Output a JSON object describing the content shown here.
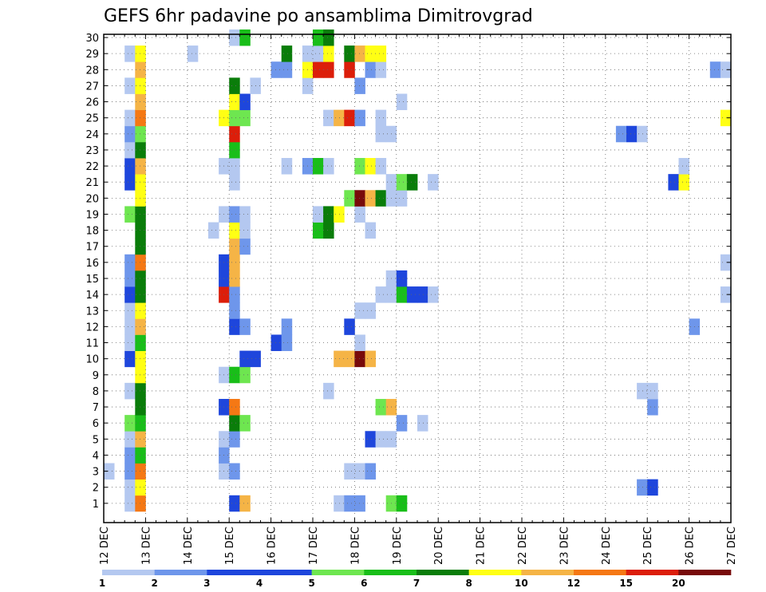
{
  "chart_data": {
    "type": "heatmap",
    "title": "GEFS 6hr padavine po ansamblima Dimitrovgrad",
    "x_tick_labels": [
      "12 DEC",
      "13 DEC",
      "14 DEC",
      "15 DEC",
      "16 DEC",
      "17 DEC",
      "18 DEC",
      "19 DEC",
      "20 DEC",
      "21 DEC",
      "22 DEC",
      "23 DEC",
      "24 DEC",
      "25 DEC",
      "26 DEC",
      "27 DEC"
    ],
    "y_tick_labels": [
      "1",
      "2",
      "3",
      "4",
      "5",
      "6",
      "7",
      "8",
      "9",
      "10",
      "11",
      "12",
      "13",
      "14",
      "15",
      "16",
      "17",
      "18",
      "19",
      "20",
      "21",
      "22",
      "23",
      "24",
      "25",
      "26",
      "27",
      "28",
      "29",
      "30"
    ],
    "x_range_steps": [
      0,
      60
    ],
    "y_range": [
      0,
      30
    ],
    "grid": true,
    "legend": {
      "position": "bottom",
      "labels": [
        "1",
        "2",
        "3",
        "4",
        "5",
        "6",
        "7",
        "8",
        "10",
        "12",
        "15",
        "20"
      ],
      "colors": [
        "#b4c8f0",
        "#6e96eb",
        "#1e46dc",
        "#1e46dc",
        "#6ee650",
        "#19be19",
        "#0a7d0a",
        "#ffff14",
        "#f5b446",
        "#f57814",
        "#dc1e0a",
        "#780a0a"
      ]
    },
    "note_cells": "Each cell: [x_step (6-hour step from 12 DEC 00h), member (1-30), legend class index 0-11]",
    "cells": [
      [
        2,
        1,
        0
      ],
      [
        3,
        1,
        9
      ],
      [
        12,
        1,
        2
      ],
      [
        13,
        1,
        8
      ],
      [
        22,
        1,
        0
      ],
      [
        23,
        1,
        1
      ],
      [
        24,
        1,
        1
      ],
      [
        27,
        1,
        4
      ],
      [
        28,
        1,
        5
      ],
      [
        2,
        2,
        0
      ],
      [
        3,
        2,
        7
      ],
      [
        51,
        2,
        1
      ],
      [
        52,
        2,
        2
      ],
      [
        0,
        3,
        0
      ],
      [
        2,
        3,
        1
      ],
      [
        3,
        3,
        9
      ],
      [
        11,
        3,
        0
      ],
      [
        12,
        3,
        1
      ],
      [
        23,
        3,
        0
      ],
      [
        24,
        3,
        0
      ],
      [
        25,
        3,
        1
      ],
      [
        2,
        4,
        1
      ],
      [
        3,
        4,
        5
      ],
      [
        11,
        4,
        1
      ],
      [
        2,
        5,
        0
      ],
      [
        3,
        5,
        8
      ],
      [
        11,
        5,
        0
      ],
      [
        12,
        5,
        1
      ],
      [
        25,
        5,
        2
      ],
      [
        26,
        5,
        0
      ],
      [
        27,
        5,
        0
      ],
      [
        2,
        6,
        4
      ],
      [
        3,
        6,
        5
      ],
      [
        12,
        6,
        6
      ],
      [
        13,
        6,
        4
      ],
      [
        28,
        6,
        1
      ],
      [
        30,
        6,
        0
      ],
      [
        3,
        7,
        6
      ],
      [
        11,
        7,
        2
      ],
      [
        12,
        7,
        9
      ],
      [
        26,
        7,
        4
      ],
      [
        27,
        7,
        8
      ],
      [
        52,
        7,
        1
      ],
      [
        2,
        8,
        0
      ],
      [
        3,
        8,
        6
      ],
      [
        21,
        8,
        0
      ],
      [
        51,
        8,
        0
      ],
      [
        52,
        8,
        0
      ],
      [
        3,
        9,
        7
      ],
      [
        11,
        9,
        0
      ],
      [
        12,
        9,
        5
      ],
      [
        13,
        9,
        4
      ],
      [
        2,
        10,
        2
      ],
      [
        3,
        10,
        7
      ],
      [
        13,
        10,
        2
      ],
      [
        14,
        10,
        2
      ],
      [
        22,
        10,
        8
      ],
      [
        23,
        10,
        8
      ],
      [
        24,
        10,
        11
      ],
      [
        25,
        10,
        8
      ],
      [
        2,
        11,
        0
      ],
      [
        3,
        11,
        5
      ],
      [
        16,
        11,
        2
      ],
      [
        17,
        11,
        1
      ],
      [
        24,
        11,
        0
      ],
      [
        2,
        12,
        0
      ],
      [
        3,
        12,
        8
      ],
      [
        12,
        12,
        2
      ],
      [
        13,
        12,
        1
      ],
      [
        17,
        12,
        1
      ],
      [
        23,
        12,
        2
      ],
      [
        56,
        12,
        1
      ],
      [
        2,
        13,
        0
      ],
      [
        3,
        13,
        7
      ],
      [
        12,
        13,
        1
      ],
      [
        24,
        13,
        0
      ],
      [
        25,
        13,
        0
      ],
      [
        2,
        14,
        2
      ],
      [
        3,
        14,
        6
      ],
      [
        11,
        14,
        10
      ],
      [
        12,
        14,
        1
      ],
      [
        26,
        14,
        0
      ],
      [
        27,
        14,
        0
      ],
      [
        28,
        14,
        5
      ],
      [
        29,
        14,
        2
      ],
      [
        30,
        14,
        2
      ],
      [
        31,
        14,
        0
      ],
      [
        59,
        14,
        0
      ],
      [
        2,
        15,
        1
      ],
      [
        3,
        15,
        6
      ],
      [
        11,
        15,
        2
      ],
      [
        12,
        15,
        8
      ],
      [
        27,
        15,
        0
      ],
      [
        28,
        15,
        2
      ],
      [
        2,
        16,
        1
      ],
      [
        3,
        16,
        9
      ],
      [
        11,
        16,
        2
      ],
      [
        12,
        16,
        8
      ],
      [
        59,
        16,
        0
      ],
      [
        3,
        17,
        6
      ],
      [
        12,
        17,
        8
      ],
      [
        13,
        17,
        1
      ],
      [
        3,
        18,
        6
      ],
      [
        10,
        18,
        0
      ],
      [
        12,
        18,
        7
      ],
      [
        13,
        18,
        0
      ],
      [
        20,
        18,
        5
      ],
      [
        21,
        18,
        6
      ],
      [
        25,
        18,
        0
      ],
      [
        2,
        19,
        4
      ],
      [
        3,
        19,
        6
      ],
      [
        11,
        19,
        0
      ],
      [
        12,
        19,
        1
      ],
      [
        13,
        19,
        0
      ],
      [
        20,
        19,
        0
      ],
      [
        21,
        19,
        6
      ],
      [
        22,
        19,
        7
      ],
      [
        24,
        19,
        0
      ],
      [
        3,
        20,
        7
      ],
      [
        23,
        20,
        4
      ],
      [
        24,
        20,
        11
      ],
      [
        25,
        20,
        8
      ],
      [
        26,
        20,
        6
      ],
      [
        27,
        20,
        0
      ],
      [
        28,
        20,
        0
      ],
      [
        2,
        21,
        2
      ],
      [
        3,
        21,
        7
      ],
      [
        12,
        21,
        0
      ],
      [
        27,
        21,
        0
      ],
      [
        28,
        21,
        4
      ],
      [
        29,
        21,
        6
      ],
      [
        31,
        21,
        0
      ],
      [
        54,
        21,
        2
      ],
      [
        55,
        21,
        7
      ],
      [
        2,
        22,
        2
      ],
      [
        3,
        22,
        8
      ],
      [
        11,
        22,
        0
      ],
      [
        12,
        22,
        0
      ],
      [
        17,
        22,
        0
      ],
      [
        19,
        22,
        1
      ],
      [
        20,
        22,
        5
      ],
      [
        21,
        22,
        0
      ],
      [
        24,
        22,
        4
      ],
      [
        25,
        22,
        7
      ],
      [
        26,
        22,
        0
      ],
      [
        55,
        22,
        0
      ],
      [
        2,
        23,
        0
      ],
      [
        3,
        23,
        6
      ],
      [
        12,
        23,
        5
      ],
      [
        2,
        24,
        1
      ],
      [
        3,
        24,
        4
      ],
      [
        12,
        24,
        10
      ],
      [
        26,
        24,
        0
      ],
      [
        27,
        24,
        0
      ],
      [
        49,
        24,
        1
      ],
      [
        50,
        24,
        2
      ],
      [
        51,
        24,
        0
      ],
      [
        2,
        25,
        0
      ],
      [
        3,
        25,
        9
      ],
      [
        11,
        25,
        7
      ],
      [
        12,
        25,
        4
      ],
      [
        13,
        25,
        4
      ],
      [
        21,
        25,
        0
      ],
      [
        22,
        25,
        8
      ],
      [
        23,
        25,
        10
      ],
      [
        24,
        25,
        1
      ],
      [
        26,
        25,
        0
      ],
      [
        59,
        25,
        7
      ],
      [
        3,
        26,
        8
      ],
      [
        12,
        26,
        7
      ],
      [
        13,
        26,
        2
      ],
      [
        28,
        26,
        0
      ],
      [
        2,
        27,
        0
      ],
      [
        3,
        27,
        7
      ],
      [
        12,
        27,
        6
      ],
      [
        14,
        27,
        0
      ],
      [
        19,
        27,
        0
      ],
      [
        24,
        27,
        1
      ],
      [
        3,
        28,
        8
      ],
      [
        16,
        28,
        1
      ],
      [
        17,
        28,
        1
      ],
      [
        19,
        28,
        7
      ],
      [
        20,
        28,
        10
      ],
      [
        21,
        28,
        10
      ],
      [
        23,
        28,
        10
      ],
      [
        25,
        28,
        1
      ],
      [
        26,
        28,
        0
      ],
      [
        58,
        28,
        1
      ],
      [
        59,
        28,
        0
      ],
      [
        2,
        29,
        0
      ],
      [
        3,
        29,
        7
      ],
      [
        8,
        29,
        0
      ],
      [
        17,
        29,
        6
      ],
      [
        19,
        29,
        0
      ],
      [
        20,
        29,
        0
      ],
      [
        21,
        29,
        7
      ],
      [
        23,
        29,
        6
      ],
      [
        24,
        29,
        8
      ],
      [
        25,
        29,
        7
      ],
      [
        26,
        29,
        7
      ],
      [
        12,
        30,
        0
      ],
      [
        13,
        30,
        5
      ],
      [
        20,
        30,
        5
      ],
      [
        21,
        30,
        6
      ]
    ]
  }
}
